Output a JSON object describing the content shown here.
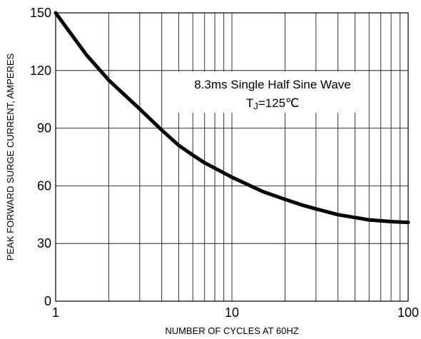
{
  "chart_data": {
    "type": "line",
    "xlabel": "NUMBER  OF  CYCLES AT 60HZ",
    "ylabel": "PEAK FORWARD SURGE CURRENT, AMPERES",
    "xscale": "log",
    "xlim": [
      1,
      100
    ],
    "ylim": [
      0,
      150
    ],
    "x_ticks": [
      {
        "value": 1,
        "label": "1"
      },
      {
        "value": 10,
        "label": "10"
      },
      {
        "value": 100,
        "label": "100"
      }
    ],
    "y_ticks": [
      {
        "value": 0,
        "label": "0"
      },
      {
        "value": 30,
        "label": "30"
      },
      {
        "value": 60,
        "label": "60"
      },
      {
        "value": 90,
        "label": "90"
      },
      {
        "value": 120,
        "label": "120"
      },
      {
        "value": 150,
        "label": "150"
      }
    ],
    "grid": true,
    "annotations": {
      "line1": "8.3ms Single Half Sine Wave",
      "line2_main": "T",
      "line2_sub": "J",
      "line2_rest": "=125℃"
    },
    "series": [
      {
        "color": "#000000",
        "points": [
          {
            "x": 1,
            "y": 150
          },
          {
            "x": 1.2,
            "y": 140
          },
          {
            "x": 1.5,
            "y": 128
          },
          {
            "x": 2,
            "y": 115
          },
          {
            "x": 3,
            "y": 100
          },
          {
            "x": 4,
            "y": 89
          },
          {
            "x": 5,
            "y": 81
          },
          {
            "x": 6,
            "y": 76
          },
          {
            "x": 7,
            "y": 72
          },
          {
            "x": 10,
            "y": 64.5
          },
          {
            "x": 15,
            "y": 57
          },
          {
            "x": 20,
            "y": 53
          },
          {
            "x": 25,
            "y": 50
          },
          {
            "x": 30,
            "y": 48
          },
          {
            "x": 40,
            "y": 45
          },
          {
            "x": 50,
            "y": 43.5
          },
          {
            "x": 60,
            "y": 42.3
          },
          {
            "x": 70,
            "y": 41.8
          },
          {
            "x": 80,
            "y": 41.4
          },
          {
            "x": 100,
            "y": 41
          }
        ]
      }
    ]
  }
}
